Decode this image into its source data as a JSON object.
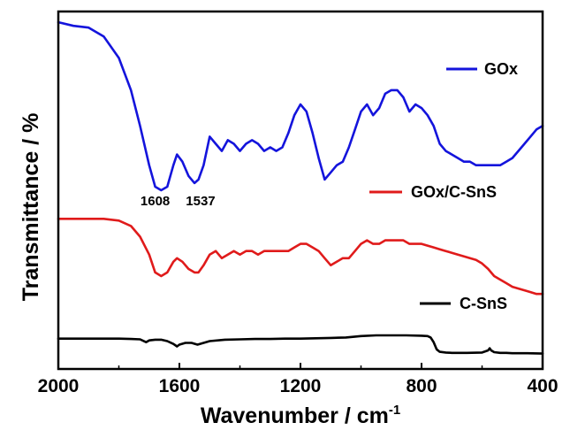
{
  "chart_data": {
    "type": "line",
    "title": "",
    "xlabel": "Wavenumber / cm",
    "xlabel_sup": "-1",
    "ylabel": "Transmittance / %",
    "xlim": [
      2000,
      400
    ],
    "x_reversed": true,
    "x_ticks": [
      2000,
      1600,
      1200,
      800,
      400
    ],
    "y_ticks_shown": false,
    "ylim": [
      0,
      100
    ],
    "grid": false,
    "legend_placement": "right, each label beside its curve",
    "annotations": [
      {
        "text": "1608",
        "x": 1680,
        "y": 47
      },
      {
        "text": "1537",
        "x": 1530,
        "y": 47
      }
    ],
    "series": [
      {
        "name": "GOx",
        "color": "#1414dc",
        "x": [
          2000,
          1950,
          1900,
          1850,
          1800,
          1760,
          1730,
          1700,
          1680,
          1660,
          1640,
          1620,
          1608,
          1590,
          1570,
          1550,
          1537,
          1520,
          1500,
          1480,
          1460,
          1440,
          1420,
          1400,
          1380,
          1360,
          1340,
          1320,
          1300,
          1280,
          1260,
          1240,
          1220,
          1200,
          1180,
          1160,
          1140,
          1120,
          1100,
          1080,
          1060,
          1040,
          1020,
          1000,
          980,
          960,
          940,
          920,
          900,
          880,
          860,
          840,
          820,
          800,
          780,
          760,
          740,
          720,
          700,
          680,
          660,
          640,
          620,
          600,
          580,
          560,
          540,
          520,
          500,
          480,
          460,
          440,
          420,
          400
        ],
        "y": [
          97,
          96,
          95.5,
          93,
          87,
          78,
          68,
          57,
          51,
          50,
          51,
          57,
          60,
          58,
          54,
          52,
          53,
          57,
          65,
          63,
          61,
          64,
          63,
          61,
          63,
          64,
          63,
          61,
          62,
          61,
          62,
          66,
          71,
          74,
          72,
          66,
          59,
          53,
          55,
          57,
          58,
          62,
          67,
          72,
          74,
          71,
          73,
          77,
          78,
          78,
          76,
          72,
          74,
          73,
          71,
          68,
          63,
          61,
          60,
          59,
          58,
          58,
          57,
          57,
          57,
          57,
          57,
          58,
          59,
          61,
          63,
          65,
          67,
          68
        ]
      },
      {
        "name": "GOx/C-SnS",
        "color": "#e01b1b",
        "x": [
          2000,
          1950,
          1900,
          1850,
          1800,
          1760,
          1730,
          1700,
          1680,
          1660,
          1640,
          1620,
          1608,
          1590,
          1570,
          1550,
          1537,
          1520,
          1500,
          1480,
          1460,
          1440,
          1420,
          1400,
          1380,
          1360,
          1340,
          1320,
          1300,
          1280,
          1260,
          1240,
          1220,
          1200,
          1180,
          1160,
          1140,
          1120,
          1100,
          1080,
          1060,
          1040,
          1020,
          1000,
          980,
          960,
          940,
          920,
          900,
          880,
          860,
          840,
          820,
          800,
          780,
          760,
          740,
          720,
          700,
          680,
          660,
          640,
          620,
          600,
          580,
          560,
          540,
          520,
          500,
          480,
          460,
          440,
          420,
          400
        ],
        "y": [
          42,
          42,
          42,
          42,
          41.5,
          40,
          37,
          32,
          27,
          26,
          27,
          30,
          31,
          30,
          28,
          27,
          27,
          29,
          32,
          33,
          31,
          32,
          33,
          32,
          33,
          33,
          32,
          33,
          33,
          33,
          33,
          33,
          34,
          35,
          35,
          34,
          33,
          31,
          29,
          30,
          31,
          31,
          33,
          35,
          36,
          35,
          35,
          36,
          36,
          36,
          36,
          35,
          35,
          35,
          34.5,
          34,
          33.5,
          33,
          32.5,
          32,
          31.5,
          31,
          30.5,
          29.5,
          28,
          26,
          25,
          24,
          23,
          22.5,
          22,
          21.5,
          21,
          21
        ]
      },
      {
        "name": "C-SnS",
        "color": "#000000",
        "x": [
          2000,
          1950,
          1900,
          1850,
          1800,
          1760,
          1730,
          1710,
          1700,
          1680,
          1660,
          1640,
          1620,
          1608,
          1600,
          1580,
          1560,
          1540,
          1520,
          1500,
          1450,
          1400,
          1350,
          1300,
          1250,
          1200,
          1150,
          1100,
          1050,
          1000,
          950,
          900,
          850,
          800,
          780,
          770,
          760,
          750,
          740,
          720,
          700,
          650,
          600,
          580,
          575,
          570,
          560,
          540,
          520,
          500,
          450,
          400
        ],
        "y": [
          8.5,
          8.5,
          8.5,
          8.5,
          8.5,
          8.4,
          8.3,
          7.5,
          8,
          8.2,
          8.2,
          7.8,
          7,
          6.3,
          6.8,
          7.3,
          7.3,
          6.8,
          7.3,
          7.8,
          8.2,
          8.3,
          8.4,
          8.4,
          8.5,
          8.5,
          8.6,
          8.7,
          8.8,
          9.2,
          9.4,
          9.4,
          9.4,
          9.3,
          9.2,
          8.8,
          7.5,
          5.5,
          4.8,
          4.6,
          4.5,
          4.5,
          4.6,
          5.2,
          5.8,
          5.2,
          4.7,
          4.5,
          4.5,
          4.4,
          4.4,
          4.3
        ]
      }
    ]
  }
}
